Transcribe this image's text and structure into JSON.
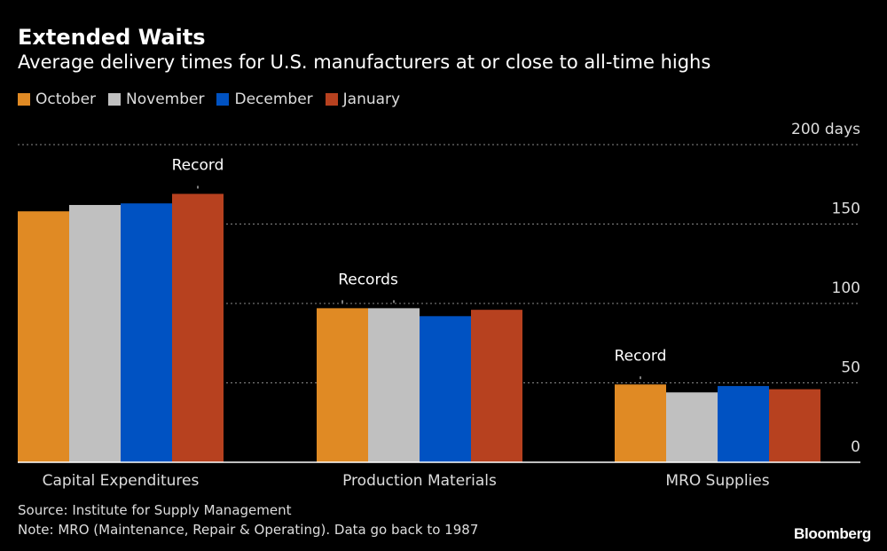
{
  "chart_data": {
    "type": "bar",
    "title": "Extended Waits",
    "subtitle": "Average delivery times for U.S. manufacturers at or close to all-time highs",
    "categories": [
      "Capital Expenditures",
      "Production Materials",
      "MRO Supplies"
    ],
    "series": [
      {
        "name": "October",
        "color": "#e08a24",
        "values": [
          158,
          97,
          49
        ]
      },
      {
        "name": "November",
        "color": "#c0c0c0",
        "values": [
          162,
          97,
          44
        ]
      },
      {
        "name": "December",
        "color": "#0052c2",
        "values": [
          163,
          92,
          48
        ]
      },
      {
        "name": "January",
        "color": "#b7411f",
        "values": [
          169,
          96,
          46
        ]
      }
    ],
    "ylim": [
      0,
      200
    ],
    "yticks": [
      0,
      50,
      100,
      150,
      200
    ],
    "ytick_labels": [
      "0",
      "50",
      "100",
      "150",
      "200 days"
    ],
    "grid": true,
    "legend_placement": "top-left",
    "annotations": [
      {
        "text": "Record",
        "category": 0,
        "series": [
          3
        ]
      },
      {
        "text": "Records",
        "category": 1,
        "series": [
          0,
          1
        ]
      },
      {
        "text": "Record",
        "category": 2,
        "series": [
          0
        ]
      }
    ]
  },
  "footer": {
    "source": "Source: Institute for Supply Management",
    "note": "Note: MRO (Maintenance, Repair & Operating). Data go back to 1987",
    "logo": "Bloomberg"
  }
}
